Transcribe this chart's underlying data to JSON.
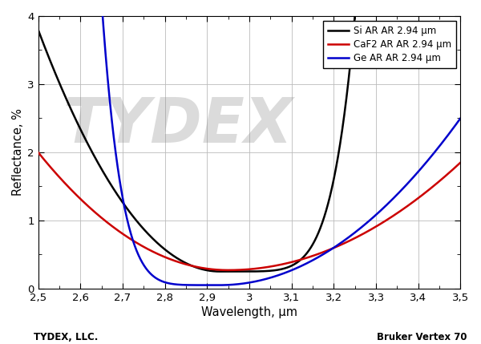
{
  "xlabel": "Wavelength, μm",
  "ylabel": "Reflectance, %",
  "xlim": [
    2.5,
    3.5
  ],
  "ylim": [
    0,
    4
  ],
  "xticks": [
    2.5,
    2.6,
    2.7,
    2.8,
    2.9,
    3.0,
    3.1,
    3.2,
    3.3,
    3.4,
    3.5
  ],
  "yticks": [
    0,
    1,
    2,
    3,
    4
  ],
  "background_color": "#ffffff",
  "grid_color": "#bbbbbb",
  "lines": [
    {
      "label": "Si AR AR 2.94 μm",
      "color": "#000000",
      "linewidth": 1.8
    },
    {
      "label": "CaF2 AR AR 2.94 μm",
      "color": "#cc0000",
      "linewidth": 1.8
    },
    {
      "label": "Ge AR AR 2.94 μm",
      "color": "#0000cc",
      "linewidth": 1.8
    }
  ],
  "footer_left": "TYDEX, LLC.",
  "footer_right": "Bruker Vertex 70",
  "watermark": "TYDEX"
}
